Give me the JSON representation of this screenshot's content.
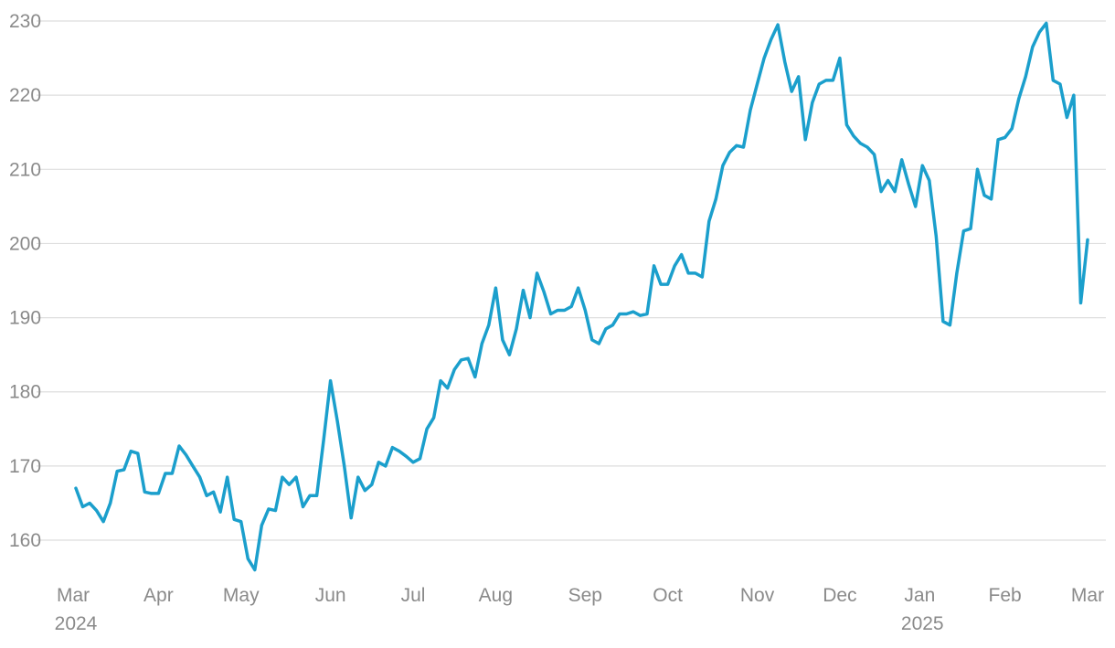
{
  "chart_data": {
    "type": "line",
    "categories": [
      "Mar 2024",
      null,
      null,
      null,
      null,
      null,
      null,
      null,
      null,
      null,
      null,
      null,
      "Apr",
      null,
      null,
      null,
      null,
      null,
      null,
      null,
      null,
      null,
      null,
      null,
      "May",
      null,
      null,
      null,
      null,
      null,
      null,
      null,
      null,
      null,
      null,
      null,
      null,
      "Jun",
      null,
      null,
      null,
      null,
      null,
      null,
      null,
      null,
      null,
      null,
      null,
      "Jul",
      null,
      null,
      null,
      null,
      null,
      null,
      null,
      null,
      null,
      null,
      null,
      "Aug",
      null,
      null,
      null,
      null,
      null,
      null,
      null,
      null,
      null,
      null,
      null,
      null,
      "Sep",
      null,
      null,
      null,
      null,
      null,
      null,
      null,
      null,
      null,
      null,
      null,
      "Oct",
      null,
      null,
      null,
      null,
      null,
      null,
      null,
      null,
      null,
      null,
      null,
      null,
      "Nov",
      null,
      null,
      null,
      null,
      null,
      null,
      null,
      null,
      null,
      null,
      null,
      "Dec",
      null,
      null,
      null,
      null,
      null,
      null,
      null,
      null,
      null,
      null,
      null,
      "Jan 2025",
      null,
      null,
      null,
      null,
      null,
      null,
      null,
      null,
      null,
      null,
      null,
      "Feb",
      null,
      null,
      null,
      null,
      null,
      null,
      null,
      null,
      null,
      null,
      null,
      "Mar"
    ],
    "series": [
      {
        "color": "#1b9fcc",
        "values": [
          167,
          164.5,
          165,
          164,
          162.5,
          165,
          169.3,
          169.5,
          172,
          171.7,
          166.5,
          166.3,
          166.3,
          169,
          169,
          172.7,
          171.5,
          170,
          168.5,
          166,
          166.5,
          163.8,
          168.5,
          162.8,
          162.5,
          157.5,
          156,
          162,
          164.2,
          164,
          168.5,
          167.5,
          168.5,
          164.5,
          166,
          166,
          173.5,
          181.5,
          176,
          170,
          163,
          168.5,
          166.7,
          167.5,
          170.5,
          170,
          172.5,
          172,
          171.3,
          170.5,
          171,
          175,
          176.5,
          181.5,
          180.5,
          183,
          184.3,
          184.5,
          182,
          186.5,
          189,
          194,
          187,
          185,
          188.5,
          193.7,
          190,
          196,
          193.5,
          190.5,
          191,
          191,
          191.5,
          194,
          191,
          187,
          186.5,
          188.5,
          189,
          190.5,
          190.5,
          190.8,
          190.3,
          190.5,
          197,
          194.5,
          194.5,
          197,
          198.5,
          196,
          196,
          195.5,
          203,
          206,
          210.5,
          212.3,
          213.2,
          213,
          218,
          221.5,
          225,
          227.5,
          229.5,
          224.5,
          220.5,
          222.5,
          214,
          219,
          221.5,
          222,
          222,
          225,
          216,
          214.5,
          213.5,
          213,
          212,
          207,
          208.5,
          207,
          211.3,
          208,
          205,
          210.5,
          208.5,
          201,
          189.5,
          189,
          196,
          201.7,
          202,
          210,
          206.5,
          206,
          214,
          214.3,
          215.5,
          219.5,
          222.5,
          226.5,
          228.5,
          229.7,
          222,
          221.5,
          217,
          220,
          192,
          200.5
        ]
      }
    ],
    "ylim": [
      155,
      231
    ],
    "yticks": [
      160,
      170,
      180,
      190,
      200,
      210,
      220,
      230
    ],
    "grid": true
  }
}
